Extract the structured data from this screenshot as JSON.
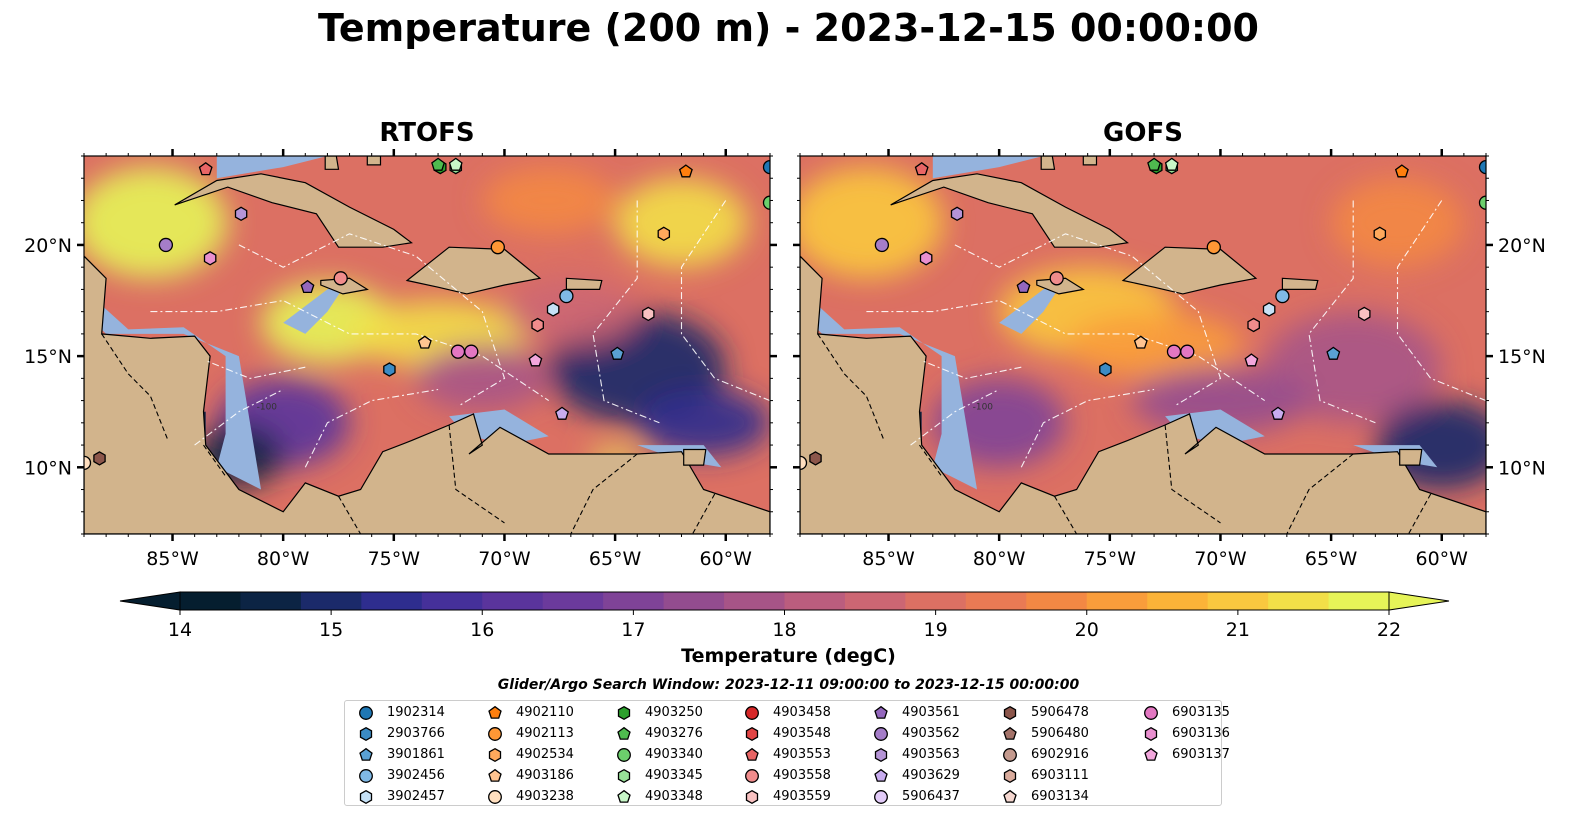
{
  "figure": {
    "title": "Temperature (200 m) - 2023-12-15 00:00:00",
    "colorbar_label": "Temperature (degC)",
    "search_window": "Glider/Argo Search Window: 2023-12-11 09:00:00 to 2023-12-15 00:00:00"
  },
  "map": {
    "lon_range": [
      -89,
      -58
    ],
    "lat_range": [
      7,
      24
    ],
    "lon_ticks": [
      -85,
      -80,
      -75,
      -70,
      -65,
      -60
    ],
    "lon_tick_labels": [
      "85°W",
      "80°W",
      "75°W",
      "70°W",
      "65°W",
      "60°W"
    ],
    "lat_ticks": [
      10,
      15,
      20
    ],
    "lat_tick_labels": [
      "10°N",
      "15°N",
      "20°N"
    ],
    "contour_label": "-100",
    "colors": {
      "land": "#d2b48c",
      "shelf": "#95b3dd",
      "border": "#000000",
      "eez": "#ffffff"
    }
  },
  "panels": [
    {
      "title": "RTOFS",
      "features": [
        {
          "lon": -86,
          "lat": 21,
          "rx": 3.5,
          "ry": 2.5,
          "t": 21.8
        },
        {
          "lon": -78,
          "lat": 16.5,
          "rx": 3,
          "ry": 1.8,
          "t": 21.8
        },
        {
          "lon": -73,
          "lat": 16,
          "rx": 4,
          "ry": 1.5,
          "t": 21.5
        },
        {
          "lon": -64,
          "lat": 14.5,
          "rx": 4,
          "ry": 2.5,
          "t": 15.2
        },
        {
          "lon": -61,
          "lat": 12,
          "rx": 3,
          "ry": 1.5,
          "t": 15.4
        },
        {
          "lon": -80,
          "lat": 12,
          "rx": 3,
          "ry": 2,
          "t": 16.2
        },
        {
          "lon": -82,
          "lat": 10.5,
          "rx": 2,
          "ry": 1.4,
          "t": 14.4
        },
        {
          "lon": -71,
          "lat": 14,
          "rx": 3,
          "ry": 1.5,
          "t": 17.6
        },
        {
          "lon": -67,
          "lat": 17,
          "rx": 3,
          "ry": 1.5,
          "t": 18.6
        },
        {
          "lon": -62,
          "lat": 21,
          "rx": 3,
          "ry": 2,
          "t": 21.3
        },
        {
          "lon": -68,
          "lat": 22,
          "rx": 3,
          "ry": 1.5,
          "t": 19.8
        },
        {
          "lon": -65,
          "lat": 10.4,
          "rx": 1.2,
          "ry": 0.4,
          "t": 22
        }
      ]
    },
    {
      "title": "GOFS",
      "features": [
        {
          "lon": -86,
          "lat": 21,
          "rx": 3.5,
          "ry": 2.5,
          "t": 20.8
        },
        {
          "lon": -76,
          "lat": 17,
          "rx": 4,
          "ry": 2,
          "t": 20.8
        },
        {
          "lon": -73,
          "lat": 15.5,
          "rx": 4,
          "ry": 1.5,
          "t": 20.4
        },
        {
          "lon": -64,
          "lat": 14.5,
          "rx": 4,
          "ry": 2.5,
          "t": 17.6
        },
        {
          "lon": -60,
          "lat": 11,
          "rx": 3,
          "ry": 2,
          "t": 15.0
        },
        {
          "lon": -80,
          "lat": 12,
          "rx": 3,
          "ry": 2,
          "t": 17.2
        },
        {
          "lon": -70,
          "lat": 13,
          "rx": 4,
          "ry": 1.5,
          "t": 17.4
        },
        {
          "lon": -62,
          "lat": 21,
          "rx": 3,
          "ry": 2,
          "t": 19.6
        }
      ]
    }
  ],
  "colorbar": {
    "vmin": 14,
    "vmax": 22,
    "ticks": [
      14,
      15,
      16,
      17,
      18,
      19,
      20,
      21,
      22
    ],
    "tick_labels": [
      "14",
      "15",
      "16",
      "17",
      "18",
      "19",
      "20",
      "21",
      "22"
    ],
    "colors": [
      "#051e2f",
      "#0c2444",
      "#1b2a6a",
      "#2e2d8e",
      "#45309a",
      "#5a349c",
      "#6b3a9c",
      "#7f4397",
      "#934c8f",
      "#a75487",
      "#bb5d7e",
      "#cc6673",
      "#dc7063",
      "#e97a54",
      "#f38844",
      "#f99d3b",
      "#fbb338",
      "#f9c83f",
      "#f2df48",
      "#e6f458"
    ]
  },
  "floats": [
    {
      "id": "1902314",
      "shape": "circle",
      "color": "#1f77b4",
      "lon": -58,
      "lat": 23.5
    },
    {
      "id": "2903766",
      "shape": "hexagon",
      "color": "#3b8bc4",
      "lon": -75.2,
      "lat": 14.4
    },
    {
      "id": "3901861",
      "shape": "pentagon",
      "color": "#5aa1d4",
      "lon": -64.9,
      "lat": 15.1
    },
    {
      "id": "3902456",
      "shape": "circle",
      "color": "#80b9e6",
      "lon": -67.2,
      "lat": 17.7
    },
    {
      "id": "3902457",
      "shape": "hexagon",
      "color": "#c6e1f6",
      "lon": -67.8,
      "lat": 17.1
    },
    {
      "id": "4902110",
      "shape": "pentagon",
      "color": "#ff7f0e",
      "lon": -61.8,
      "lat": 23.3
    },
    {
      "id": "4902113",
      "shape": "circle",
      "color": "#ff9735",
      "lon": -70.3,
      "lat": 19.9
    },
    {
      "id": "4902534",
      "shape": "hexagon",
      "color": "#ffa95c",
      "lon": -62.8,
      "lat": 20.5
    },
    {
      "id": "4903186",
      "shape": "pentagon",
      "color": "#ffc490",
      "lon": -73.6,
      "lat": 15.6
    },
    {
      "id": "4903238",
      "shape": "circle",
      "color": "#ffdfbf",
      "lon": -89,
      "lat": 10.2
    },
    {
      "id": "4903250",
      "shape": "hexagon",
      "color": "#2ca02c",
      "lon": -72.9,
      "lat": 23.5
    },
    {
      "id": "4903276",
      "shape": "pentagon",
      "color": "#4fbb4f",
      "lon": -73,
      "lat": 23.6
    },
    {
      "id": "4903340",
      "shape": "circle",
      "color": "#6ccf6c",
      "lon": -58,
      "lat": 21.9
    },
    {
      "id": "4903345",
      "shape": "hexagon",
      "color": "#98e198",
      "lon": -72.2,
      "lat": 23.5
    },
    {
      "id": "4903348",
      "shape": "pentagon",
      "color": "#c8f7c8",
      "lon": -72.2,
      "lat": 23.6
    },
    {
      "id": "4903458",
      "shape": "circle",
      "color": "#d62728",
      "lon": null,
      "lat": null
    },
    {
      "id": "4903548",
      "shape": "hexagon",
      "color": "#e24444",
      "lon": null,
      "lat": null
    },
    {
      "id": "4903553",
      "shape": "pentagon",
      "color": "#e86565",
      "lon": null,
      "lat": null
    },
    {
      "id": "4903558",
      "shape": "circle",
      "color": "#f08c8c",
      "lon": -77.4,
      "lat": 18.5
    },
    {
      "id": "4903559",
      "shape": "hexagon",
      "color": "#f8c1c1",
      "lon": -63.5,
      "lat": 16.9
    },
    {
      "id": "4903561",
      "shape": "pentagon",
      "color": "#9467bd",
      "lon": -78.9,
      "lat": 18.1
    },
    {
      "id": "4903562",
      "shape": "circle",
      "color": "#a57dc9",
      "lon": -85.3,
      "lat": 20
    },
    {
      "id": "4903563",
      "shape": "hexagon",
      "color": "#b594d6",
      "lon": -81.9,
      "lat": 21.4
    },
    {
      "id": "4903629",
      "shape": "pentagon",
      "color": "#c8acef",
      "lon": -67.4,
      "lat": 12.4
    },
    {
      "id": "5906437",
      "shape": "circle",
      "color": "#e2cbf8",
      "lon": null,
      "lat": null
    },
    {
      "id": "5906478",
      "shape": "hexagon",
      "color": "#8c564b",
      "lon": -88.3,
      "lat": 10.4
    },
    {
      "id": "5906480",
      "shape": "pentagon",
      "color": "#a4736a",
      "lon": null,
      "lat": null
    },
    {
      "id": "6902916",
      "shape": "circle",
      "color": "#c49a8e",
      "lon": null,
      "lat": null
    },
    {
      "id": "6903111",
      "shape": "hexagon",
      "color": "#d9ab9c",
      "lon": null,
      "lat": null
    },
    {
      "id": "6903134",
      "shape": "pentagon",
      "color": "#f5d7d0",
      "lon": null,
      "lat": null
    },
    {
      "id": "6903135",
      "shape": "circle",
      "color": "#e377c2",
      "lon": -72.1,
      "lat": 15.2
    },
    {
      "id": "6903136",
      "shape": "hexagon",
      "color": "#e98fcf",
      "lon": -83.3,
      "lat": 19.4
    },
    {
      "id": "6903137",
      "shape": "pentagon",
      "color": "#f2a7dc",
      "lon": -68.6,
      "lat": 14.8
    }
  ],
  "extra_markers": [
    {
      "shape": "circle",
      "color": "#e377c2",
      "lon": -71.5,
      "lat": 15.2
    },
    {
      "shape": "pentagon",
      "color": "#e86565",
      "lon": -83.5,
      "lat": 23.4
    },
    {
      "shape": "hexagon",
      "color": "#f08c8c",
      "lon": -68.5,
      "lat": 16.4
    }
  ]
}
